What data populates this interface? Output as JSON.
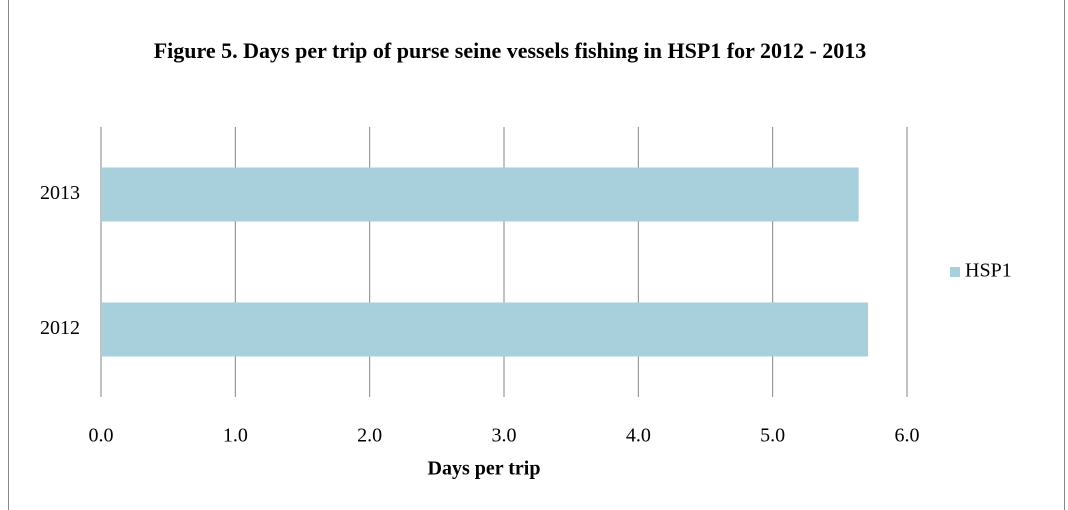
{
  "chart_data": {
    "type": "barh",
    "title": "Figure 5. Days per trip of purse seine vessels fishing in HSP1 for 2012 - 2013",
    "xlabel": "Days per trip",
    "categories": [
      "2012",
      "2013"
    ],
    "series": [
      {
        "name": "HSP1",
        "color": "#a8cfdc",
        "values": [
          5.71,
          5.64
        ]
      }
    ],
    "xlim": [
      0,
      6
    ],
    "xticks": [
      {
        "value": 0,
        "label": "0.0"
      },
      {
        "value": 1,
        "label": "1.0"
      },
      {
        "value": 2,
        "label": "2.0"
      },
      {
        "value": 3,
        "label": "3.0"
      },
      {
        "value": 4,
        "label": "4.0"
      },
      {
        "value": 5,
        "label": "5.0"
      },
      {
        "value": 6,
        "label": "6.0"
      }
    ],
    "grid": true,
    "legend": "right"
  }
}
